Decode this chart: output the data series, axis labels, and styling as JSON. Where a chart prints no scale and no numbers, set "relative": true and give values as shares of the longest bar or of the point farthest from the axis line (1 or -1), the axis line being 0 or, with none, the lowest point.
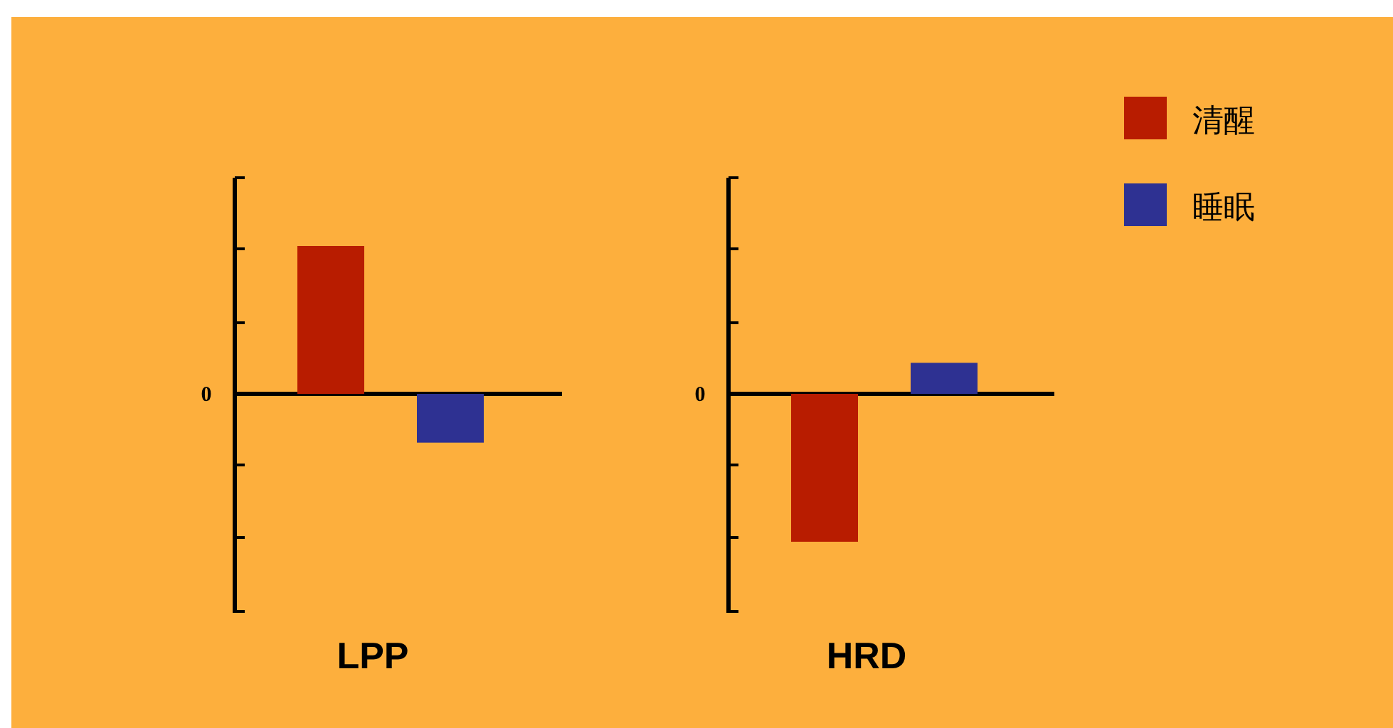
{
  "chart_data": [
    {
      "type": "bar",
      "relative": true,
      "xlabel": "LPP",
      "categories": [
        null
      ],
      "annotations": [
        "0"
      ],
      "legend": false,
      "series": [
        {
          "color": "#b81c00",
          "values": [
            1
          ]
        },
        {
          "color": "#2e3192",
          "values": [
            -0.33
          ]
        }
      ]
    },
    {
      "type": "bar",
      "relative": true,
      "xlabel": "HRD",
      "categories": [
        null
      ],
      "annotations": [
        "0"
      ],
      "legend": "top right",
      "series": [
        {
          "name": "清醒",
          "color": "#b81c00",
          "values": [
            -1
          ]
        },
        {
          "name": "睡眠",
          "color": "#2e3192",
          "values": [
            0.21
          ]
        }
      ]
    }
  ]
}
